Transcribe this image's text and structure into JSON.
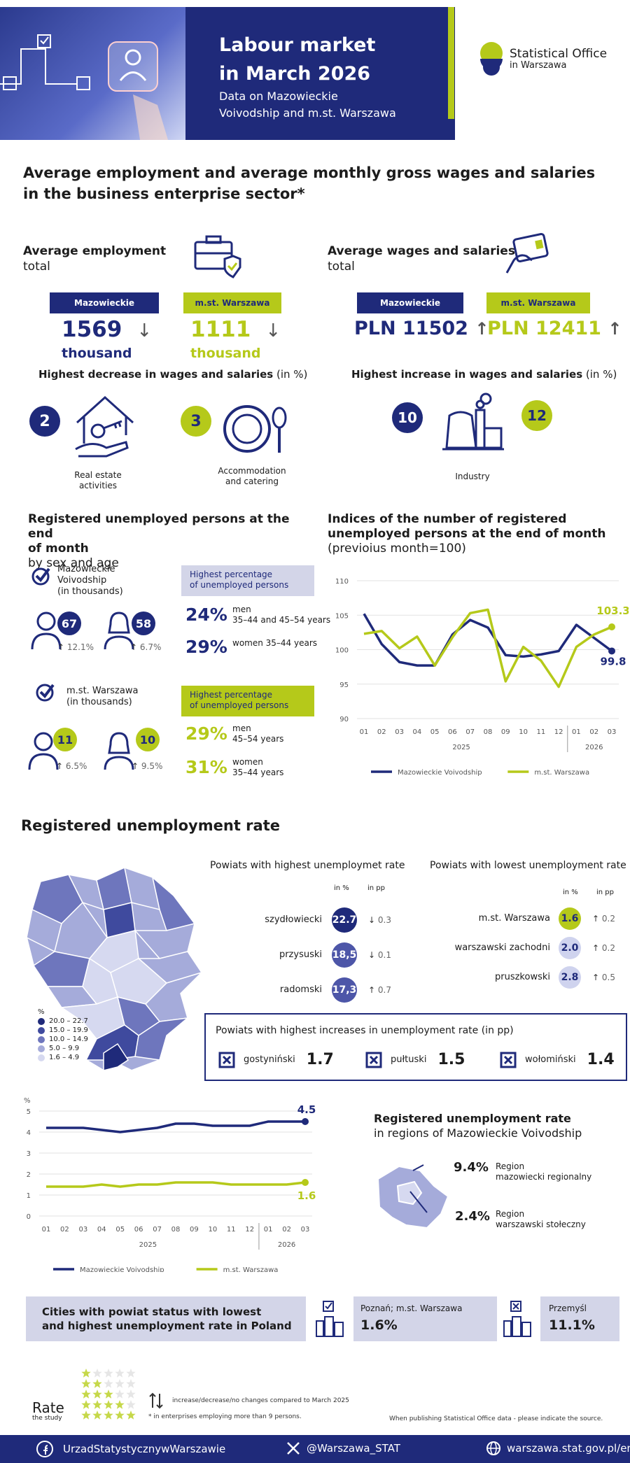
{
  "header": {
    "title_line1": "Labour market",
    "title_line2": "in March 2026",
    "subtitle_line1": "Data on Mazowieckie",
    "subtitle_line2": "Voivodship and m.st. Warszawa",
    "logo_line1": "Statistical Office",
    "logo_line2": "in Warszawa"
  },
  "section1": {
    "title_line1": "Average employment and average monthly gross wages and salaries",
    "title_line2": "in the business enterprise sector*",
    "employment": {
      "heading": "Average employment",
      "sub": "total",
      "maz_label": "Mazowieckie Voivodship",
      "maz_value": "1569",
      "maz_unit": "thousand",
      "maz_arrow": "↓",
      "wwa_label": "m.st. Warszawa",
      "wwa_value": "1111",
      "wwa_unit": "thousand",
      "wwa_arrow": "↓"
    },
    "wages": {
      "heading": "Average wages and salaries",
      "sub": "total",
      "maz_label": "Mazowieckie Voivodship",
      "maz_value": "PLN 11502",
      "maz_arrow": "↑",
      "wwa_label": "m.st. Warszawa",
      "wwa_value": "PLN 12411",
      "wwa_arrow": "↑"
    },
    "decrease": {
      "heading": "Highest decrease in wages and salaries",
      "heading_unit": " (in %)",
      "items": [
        {
          "value": "2",
          "label_line1": "Real estate",
          "label_line2": "activities"
        },
        {
          "value": "3",
          "label_line1": "Accommodation",
          "label_line2": "and catering"
        }
      ]
    },
    "increase": {
      "heading": "Highest increase in wages and salaries",
      "heading_unit": " (in %)",
      "value_left": "10",
      "value_right": "12",
      "label": "Industry"
    }
  },
  "section2": {
    "title_line1": "Registered unemployed persons at the end",
    "title_line2": "of month",
    "sub": "by sex and age",
    "maz": {
      "label_line1": "Mazowieckie",
      "label_line2": "Voivodship",
      "label_line3": "(in thousands)",
      "men_value": "67",
      "men_change": "12.1%",
      "women_value": "58",
      "women_change": "6.7%",
      "box_line1": "Highest percentage",
      "box_line2": "of unemployed persons",
      "p1_value": "24%",
      "p1_line1": "men",
      "p1_line2": "35–44 and 45–54 years",
      "p2_value": "29%",
      "p2_line1": "women 35–44 years"
    },
    "wwa": {
      "label_line1": "m.st. Warszawa",
      "label_line2": "(in thousands)",
      "men_value": "11",
      "men_change": "6.5%",
      "women_value": "10",
      "women_change": "9.5%",
      "box_line1": "Highest percentage",
      "box_line2": "of unemployed persons",
      "p1_value": "29%",
      "p1_line1": "men",
      "p1_line2": "45–54 years",
      "p2_value": "31%",
      "p2_line1": "women",
      "p2_line2": "35–44 years"
    },
    "arrow_up": "↑"
  },
  "chart_data": [
    {
      "type": "line",
      "title": "Indices of the number of registered  unemployed persons at the end of month",
      "subtitle": "(previoius month=100)",
      "categories": [
        "01",
        "02",
        "03",
        "04",
        "05",
        "06",
        "07",
        "08",
        "09",
        "10",
        "11",
        "12",
        "01",
        "02",
        "03"
      ],
      "year_labels": [
        "2025",
        "2026"
      ],
      "ylim": [
        90,
        110
      ],
      "yticks": [
        90,
        95,
        100,
        105,
        110
      ],
      "series": [
        {
          "name": "Mazowieckie Voivodship",
          "color": "#1f2a7a",
          "values": [
            105.2,
            100.8,
            98.2,
            97.7,
            97.7,
            102.2,
            104.3,
            103.2,
            99.2,
            99.0,
            99.3,
            99.8,
            103.6,
            101.7,
            99.8
          ]
        },
        {
          "name": "m.st. Warszawa",
          "color": "#b5c91a",
          "values": [
            102.3,
            102.7,
            100.2,
            101.9,
            97.7,
            101.8,
            105.3,
            105.8,
            95.4,
            100.4,
            98.4,
            94.6,
            100.4,
            102.2,
            103.3
          ]
        }
      ],
      "end_labels": [
        "99.8",
        "103.3"
      ],
      "legend": "bottom"
    },
    {
      "type": "line",
      "title": "",
      "ylabel": "%",
      "categories": [
        "01",
        "02",
        "03",
        "04",
        "05",
        "06",
        "07",
        "08",
        "09",
        "10",
        "11",
        "12",
        "01",
        "02",
        "03"
      ],
      "year_labels": [
        "2025",
        "2026"
      ],
      "ylim": [
        0,
        5
      ],
      "yticks": [
        0,
        1,
        2,
        3,
        4,
        5
      ],
      "series": [
        {
          "name": "Mazowieckie Voivodship",
          "color": "#1f2a7a",
          "values": [
            4.2,
            4.2,
            4.2,
            4.1,
            4.0,
            4.1,
            4.2,
            4.4,
            4.4,
            4.3,
            4.3,
            4.3,
            4.5,
            4.5,
            4.5
          ]
        },
        {
          "name": "m.st. Warszawa",
          "color": "#b5c91a",
          "values": [
            1.4,
            1.4,
            1.4,
            1.5,
            1.4,
            1.5,
            1.5,
            1.6,
            1.6,
            1.6,
            1.5,
            1.5,
            1.5,
            1.5,
            1.6
          ]
        }
      ],
      "end_labels": [
        "4.5",
        "1.6"
      ],
      "legend": "bottom"
    }
  ],
  "section3": {
    "title": "Registered unemployment rate",
    "highest": {
      "heading": "Powiats with highest unemploymet rate",
      "col1": "in %",
      "col2": "in pp",
      "rows": [
        {
          "name": "szydłowiecki",
          "value": "22.7",
          "arrow": "↓",
          "change": "0.3"
        },
        {
          "name": "przysuski",
          "value": "18,5",
          "arrow": "↓",
          "change": "0.1"
        },
        {
          "name": "radomski",
          "value": "17,3",
          "arrow": "↑",
          "change": "0.7"
        }
      ]
    },
    "lowest": {
      "heading": "Powiats with lowest unemployment rate",
      "col1": "in %",
      "col2": "in pp",
      "rows": [
        {
          "name": "m.st. Warszawa",
          "value": "1.6",
          "arrow": "↑",
          "change": "0.2"
        },
        {
          "name": "warszawski zachodni",
          "value": "2.0",
          "arrow": "↑",
          "change": "0.2"
        },
        {
          "name": "pruszkowski",
          "value": "2.8",
          "arrow": "↑",
          "change": "0.5"
        }
      ]
    },
    "legend": {
      "unit": "%",
      "items": [
        {
          "label": "20.0 – 22.7",
          "color": "#1f2a7a"
        },
        {
          "label": "15.0 – 19.9",
          "color": "#3f4a9e"
        },
        {
          "label": "10.0 – 14.9",
          "color": "#6e76bd"
        },
        {
          "label": "5.0 –   9.9",
          "color": "#a5abda"
        },
        {
          "label": "1.6 –   4.9",
          "color": "#d6d9f0"
        }
      ]
    },
    "increases": {
      "heading": "Powiats with highest increases in unemployment rate (in pp)",
      "items": [
        {
          "name": "gostyniński",
          "value": "1.7"
        },
        {
          "name": "pułtuski",
          "value": "1.5"
        },
        {
          "name": "wołomiński",
          "value": "1.4"
        }
      ]
    },
    "regions": {
      "heading": "Registered unemployment rate",
      "sub": "in regions of Mazowieckie Voivodship",
      "r1_value": "9.4%",
      "r1_line1": "Region",
      "r1_line2": "mazowiecki regionalny",
      "r2_value": "2.4%",
      "r2_line1": "Region",
      "r2_line2": "warszawski stołeczny"
    }
  },
  "section4": {
    "heading_line1": "Cities with powiat status with lowest",
    "heading_line2": "and highest unemployment rate in Poland",
    "low_name": "Poznań; m.st. Warszawa",
    "low_value": "1.6%",
    "high_name": "Przemyśl",
    "high_value": "11.1%"
  },
  "notes": {
    "rate": "Rate",
    "rate_sub": "the study",
    "arrows_note": "increase/decrease/no changes compared to March 2025",
    "footnote": "* in enterprises employing more than 9 persons.",
    "source": "When publishing Statistical Office data - please indicate the source."
  },
  "footer": {
    "facebook": "UrzadStatystycznywWarszawie",
    "x": "@Warszawa_STAT",
    "web": "warszawa.stat.gov.pl/en/"
  }
}
